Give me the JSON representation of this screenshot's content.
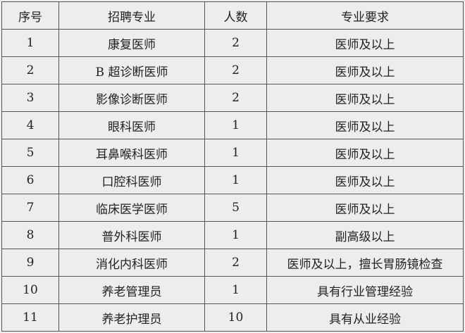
{
  "headers": [
    "序号",
    "招聘专业",
    "人数",
    "专业要求"
  ],
  "rows": [
    [
      "1",
      "康复医师",
      "2",
      "医师及以上"
    ],
    [
      "2",
      "B 超诊断医师",
      "2",
      "医师及以上"
    ],
    [
      "3",
      "影像诊断医师",
      "2",
      "医师及以上"
    ],
    [
      "4",
      "眼科医师",
      "1",
      "医师及以上"
    ],
    [
      "5",
      "耳鼻喉科医师",
      "1",
      "医师及以上"
    ],
    [
      "6",
      "口腔科医师",
      "1",
      "医师及以上"
    ],
    [
      "7",
      "临床医学医师",
      "5",
      "医师及以上"
    ],
    [
      "8",
      "普外科医师",
      "1",
      "副高级以上"
    ],
    [
      "9",
      "消化内科医师",
      "2",
      "医师及以上，擅长胃肠镜检查"
    ],
    [
      "10",
      "养老管理员",
      "1",
      "具有行业管理经验"
    ],
    [
      "11",
      "养老护理员",
      "10",
      "具有从业经验"
    ]
  ]
}
